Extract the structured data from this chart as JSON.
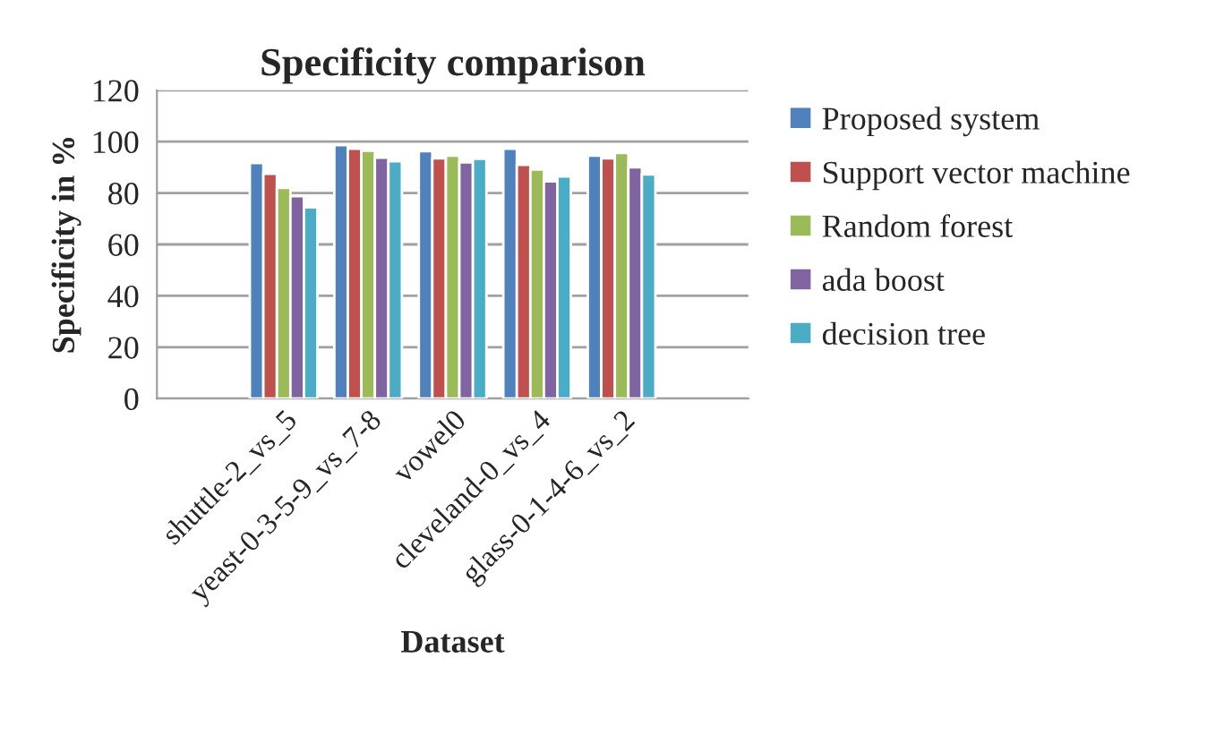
{
  "chart_data": {
    "type": "bar",
    "title": "Specificity comparison",
    "xlabel": "Dataset",
    "ylabel": "Specificity in %",
    "categories": [
      null,
      "shuttle-2_vs_5",
      "yeast-0-3-5-9_vs_7-8",
      "vowel0",
      "cleveland-0_vs_4",
      "glass-0-1-4-6_vs_2",
      null
    ],
    "series": [
      {
        "name": "Proposed system",
        "color": "#4f81bd",
        "values": [
          null,
          91.7,
          98.6,
          96.3,
          97.2,
          94.5,
          null
        ]
      },
      {
        "name": "Support vector machine",
        "color": "#c0504d",
        "values": [
          null,
          87.5,
          97.2,
          93.5,
          91,
          93.5,
          null
        ]
      },
      {
        "name": "Random forest",
        "color": "#9bbb59",
        "values": [
          null,
          82,
          96.5,
          94.5,
          89.1,
          95.6,
          null
        ]
      },
      {
        "name": "ada boost",
        "color": "#8064a2",
        "values": [
          null,
          78.8,
          93.8,
          91.9,
          84.5,
          90,
          null
        ]
      },
      {
        "name": "decision tree",
        "color": "#4bacc6",
        "values": [
          null,
          74.4,
          92.4,
          93.3,
          86.4,
          87.2,
          null
        ]
      }
    ],
    "ylim": [
      0,
      120
    ],
    "yticks": [
      0,
      20,
      40,
      60,
      80,
      100,
      120
    ],
    "grid": "y",
    "legend": "right"
  }
}
